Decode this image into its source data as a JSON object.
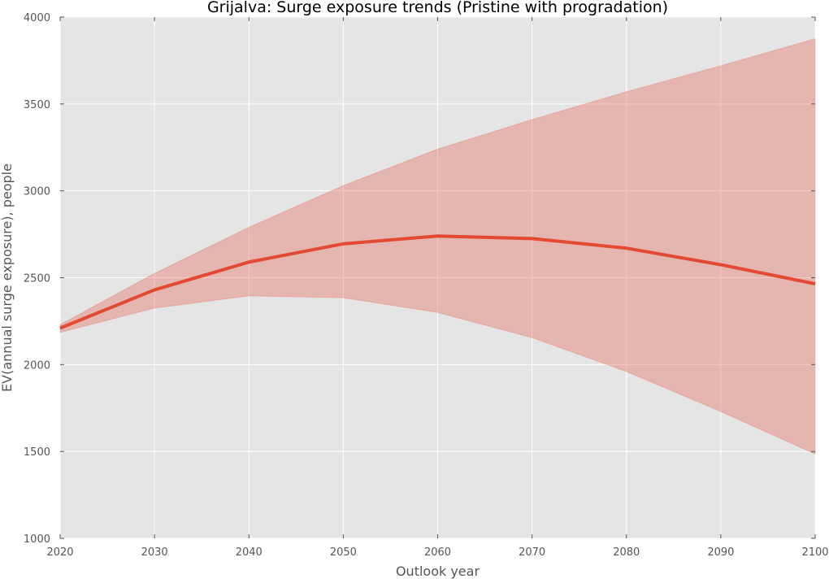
{
  "chart_data": {
    "type": "area",
    "title": "Grijalva: Surge exposure trends (Pristine with progradation)",
    "xlabel": "Outlook year",
    "ylabel": "EV(annual surge exposure), people",
    "xlim": [
      2020,
      2100
    ],
    "ylim": [
      1000,
      4000
    ],
    "x_ticks": [
      "2020",
      "2030",
      "2040",
      "2050",
      "2060",
      "2070",
      "2080",
      "2090",
      "2100"
    ],
    "y_ticks": [
      "1000",
      "1500",
      "2000",
      "2500",
      "3000",
      "3500",
      "4000"
    ],
    "grid": true,
    "x": [
      2020,
      2030,
      2040,
      2050,
      2060,
      2070,
      2080,
      2090,
      2100
    ],
    "series": [
      {
        "values": [
          2210,
          2430,
          2590,
          2695,
          2740,
          2725,
          2670,
          2575,
          2465
        ],
        "lower": [
          2185,
          2325,
          2395,
          2385,
          2300,
          2155,
          1960,
          1730,
          1485
        ],
        "upper": [
          2230,
          2525,
          2790,
          3030,
          3240,
          3410,
          3570,
          3720,
          3875
        ],
        "line_color": "#e24a33",
        "band_color": "#e24a33"
      }
    ],
    "colors": {
      "plot_background": "#e5e5e5",
      "grid": "#ffffff"
    }
  }
}
